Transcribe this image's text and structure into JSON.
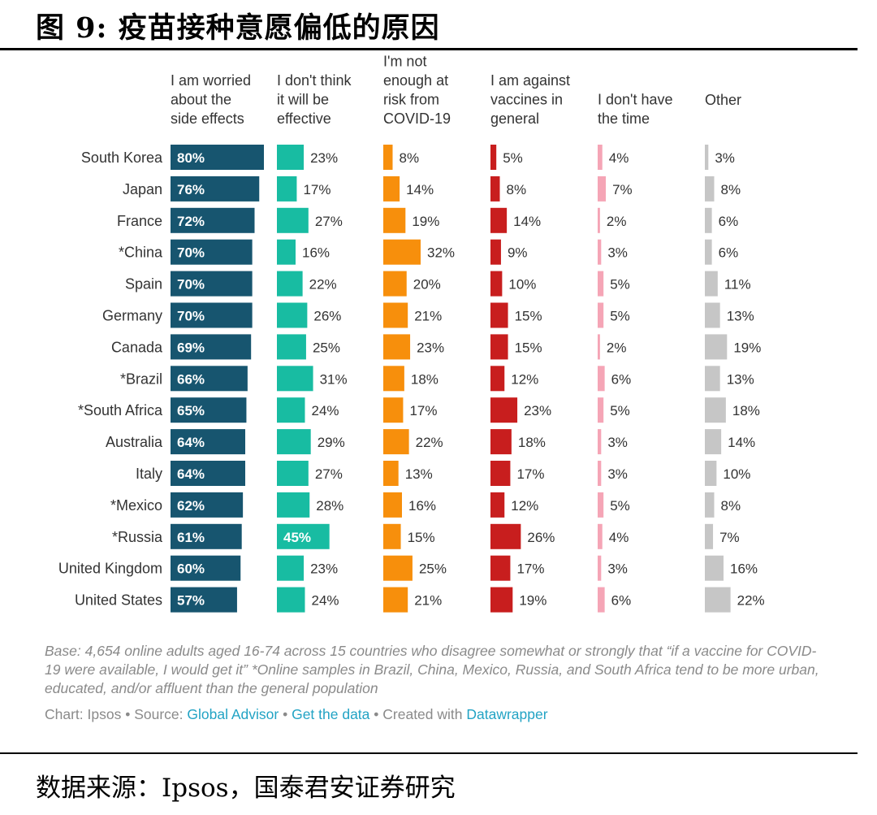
{
  "figure_title": "图 9:  疫苗接种意愿偏低的原因",
  "source_line": "数据来源：Ipsos，国泰君安证券研究",
  "colors": {
    "worried": "#17556f",
    "not_effective": "#18bca2",
    "not_at_risk": "#f78f0c",
    "against": "#c81e1e",
    "no_time": "#f5a5b6",
    "other": "#c6c6c6",
    "label_text": "#333333"
  },
  "chart_data": {
    "type": "bar",
    "orientation": "horizontal",
    "layout": "small-multiples",
    "unit": "%",
    "categories": [
      "South Korea",
      "Japan",
      "France",
      "*China",
      "Spain",
      "Germany",
      "Canada",
      "*Brazil",
      "*South Africa",
      "Australia",
      "Italy",
      "*Mexico",
      "*Russia",
      "United Kingdom",
      "United States"
    ],
    "series": [
      {
        "key": "worried",
        "name": "I am worried\nabout the\nside effects",
        "values": [
          80,
          76,
          72,
          70,
          70,
          70,
          69,
          66,
          65,
          64,
          64,
          62,
          61,
          60,
          57
        ]
      },
      {
        "key": "not_effective",
        "name": "I don't think\nit will be\neffective",
        "values": [
          23,
          17,
          27,
          16,
          22,
          26,
          25,
          31,
          24,
          29,
          27,
          28,
          45,
          23,
          24
        ]
      },
      {
        "key": "not_at_risk",
        "name": "I'm not\nenough at\nrisk from\nCOVID-19",
        "values": [
          8,
          14,
          19,
          32,
          20,
          21,
          23,
          18,
          17,
          22,
          13,
          16,
          15,
          25,
          21
        ]
      },
      {
        "key": "against",
        "name": "I am against\nvaccines in\ngeneral",
        "values": [
          5,
          8,
          14,
          9,
          10,
          15,
          15,
          12,
          23,
          18,
          17,
          12,
          26,
          17,
          19
        ]
      },
      {
        "key": "no_time",
        "name": "I don't have\nthe time",
        "values": [
          4,
          7,
          2,
          3,
          5,
          5,
          2,
          6,
          5,
          3,
          3,
          5,
          4,
          3,
          6
        ]
      },
      {
        "key": "other",
        "name": "Other",
        "values": [
          3,
          8,
          6,
          6,
          11,
          13,
          19,
          13,
          18,
          14,
          10,
          8,
          7,
          16,
          22
        ]
      }
    ],
    "xlim": [
      0,
      80
    ]
  },
  "notes": "Base: 4,654 online adults aged 16-74 across 15 countries who disagree somewhat or strongly that “if a vaccine for COVID-19 were available, I would get it” *Online samples in Brazil, China, Mexico, Russia, and South Africa tend to be more urban, educated, and/or affluent than the general population",
  "credits": {
    "chart_prefix": "Chart: Ipsos • Source: ",
    "source_link": "Global Advisor",
    "sep1": " • ",
    "data_link": "Get the data",
    "sep2": " • Created with ",
    "tool_link": "Datawrapper"
  }
}
